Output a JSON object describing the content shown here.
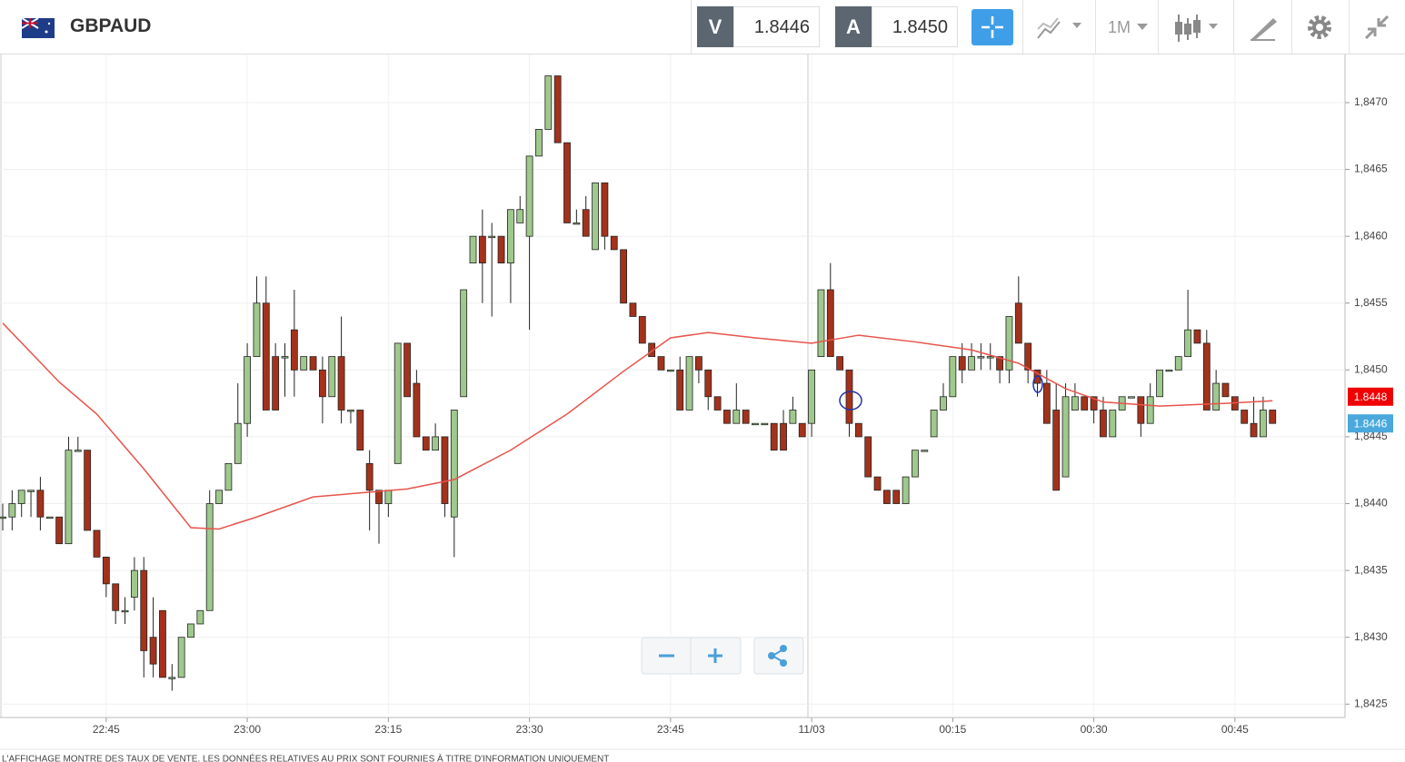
{
  "header": {
    "symbol": "GBPAUD",
    "sell_label": "V",
    "sell_price": "1.8446",
    "buy_label": "A",
    "buy_price": "1.8450",
    "timeframe": "1M"
  },
  "disclaimer": "L'AFFICHAGE MONTRE DES TAUX DE VENTE. LES DONNÉES RELATIVES AU PRIX SONT FOURNIES À TITRE D'INFORMATION UNIQUEMENT",
  "chart_data": {
    "type": "candlestick",
    "x": [
      "22:34",
      "22:35",
      "22:36",
      "22:37",
      "22:38",
      "22:39",
      "22:40",
      "22:41",
      "22:42",
      "22:43",
      "22:44",
      "22:45",
      "22:46",
      "22:47",
      "22:48",
      "22:49",
      "22:50",
      "22:51",
      "22:52",
      "22:53",
      "22:54",
      "22:55",
      "22:56",
      "22:57",
      "22:58",
      "22:59",
      "23:00",
      "23:01",
      "23:02",
      "23:03",
      "23:04",
      "23:05",
      "23:06",
      "23:07",
      "23:08",
      "23:09",
      "23:10",
      "23:11",
      "23:12",
      "23:13",
      "23:14",
      "23:15",
      "23:16",
      "23:17",
      "23:18",
      "23:19",
      "23:20",
      "23:21",
      "23:22",
      "23:23",
      "23:24",
      "23:25",
      "23:26",
      "23:27",
      "23:28",
      "23:29",
      "23:30",
      "23:31",
      "23:32",
      "23:33",
      "23:34",
      "23:35",
      "23:36",
      "23:37",
      "23:38",
      "23:39",
      "23:40",
      "23:41",
      "23:42",
      "23:43",
      "23:44",
      "23:45",
      "23:46",
      "23:47",
      "23:48",
      "23:49",
      "23:50",
      "23:51",
      "23:52",
      "23:53",
      "23:54",
      "23:55",
      "23:56",
      "23:57",
      "23:58",
      "23:59",
      "00:00",
      "00:01",
      "00:02",
      "00:03",
      "00:04",
      "00:05",
      "00:06",
      "00:07",
      "00:08",
      "00:09",
      "00:10",
      "00:11",
      "00:12",
      "00:13",
      "00:14",
      "00:15",
      "00:16",
      "00:17",
      "00:18",
      "00:19",
      "00:20",
      "00:21",
      "00:22",
      "00:23",
      "00:24",
      "00:25",
      "00:26",
      "00:27",
      "00:28",
      "00:29",
      "00:30",
      "00:31",
      "00:32",
      "00:33",
      "00:34",
      "00:35",
      "00:36",
      "00:37",
      "00:38",
      "00:39",
      "00:40",
      "00:41",
      "00:42",
      "00:43",
      "00:44",
      "00:45",
      "00:46",
      "00:47",
      "00:48",
      "00:49"
    ],
    "open": [
      1.8439,
      1.8439,
      1.844,
      1.8441,
      1.8441,
      1.8439,
      1.8439,
      1.8437,
      1.8444,
      1.8444,
      1.8438,
      1.8436,
      1.8434,
      1.8432,
      1.8433,
      1.8435,
      1.843,
      1.8432,
      1.8427,
      1.8427,
      1.843,
      1.8431,
      1.8432,
      1.844,
      1.8441,
      1.8443,
      1.8446,
      1.8451,
      1.8455,
      1.8451,
      1.8451,
      1.8453,
      1.845,
      1.8451,
      1.845,
      1.8448,
      1.8451,
      1.8447,
      1.8447,
      1.8443,
      1.8441,
      1.844,
      1.8443,
      1.8452,
      1.8449,
      1.8445,
      1.8444,
      1.8445,
      1.8439,
      1.8448,
      1.8458,
      1.846,
      1.846,
      1.846,
      1.8458,
      1.8461,
      1.846,
      1.8466,
      1.8468,
      1.8472,
      1.8467,
      1.8461,
      1.8462,
      1.8459,
      1.8464,
      1.846,
      1.8459,
      1.8455,
      1.8454,
      1.8452,
      1.8451,
      1.845,
      1.845,
      1.8447,
      1.8451,
      1.845,
      1.8448,
      1.8447,
      1.8446,
      1.8447,
      1.8446,
      1.8446,
      1.8446,
      1.8446,
      1.8446,
      1.8446,
      1.8446,
      1.8451,
      1.8456,
      1.8451,
      1.845,
      1.8446,
      1.8445,
      1.8442,
      1.8441,
      1.8441,
      1.844,
      1.8442,
      1.8444,
      1.8445,
      1.8447,
      1.8448,
      1.8451,
      1.845,
      1.8451,
      1.8451,
      1.8451,
      1.845,
      1.8455,
      1.8452,
      1.845,
      1.8449,
      1.8447,
      1.8442,
      1.8447,
      1.8448,
      1.8448,
      1.8447,
      1.8445,
      1.8447,
      1.8448,
      1.8448,
      1.8446,
      1.8448,
      1.845,
      1.845,
      1.8451,
      1.8453,
      1.8452,
      1.8447,
      1.8449,
      1.8448,
      1.8447,
      1.8446,
      1.8445,
      1.8447
    ],
    "high": [
      1.844,
      1.8441,
      1.8441,
      1.8441,
      1.8442,
      1.8439,
      1.8439,
      1.8445,
      1.8445,
      1.8444,
      1.8438,
      1.8436,
      1.8434,
      1.8433,
      1.8436,
      1.8436,
      1.8433,
      1.8432,
      1.8428,
      1.843,
      1.8431,
      1.8432,
      1.8441,
      1.8441,
      1.8443,
      1.8449,
      1.8452,
      1.8457,
      1.8457,
      1.8452,
      1.8452,
      1.8456,
      1.8451,
      1.8451,
      1.8451,
      1.8451,
      1.8454,
      1.8447,
      1.8447,
      1.8444,
      1.8441,
      1.8441,
      1.8452,
      1.8452,
      1.845,
      1.8445,
      1.8446,
      1.8445,
      1.8447,
      1.8456,
      1.846,
      1.8462,
      1.8461,
      1.846,
      1.8462,
      1.8463,
      1.8466,
      1.8468,
      1.8472,
      1.8472,
      1.8467,
      1.8462,
      1.8463,
      1.8464,
      1.8464,
      1.846,
      1.8459,
      1.8455,
      1.8454,
      1.8452,
      1.8451,
      1.845,
      1.8451,
      1.8451,
      1.8451,
      1.845,
      1.8448,
      1.8447,
      1.8449,
      1.8447,
      1.8446,
      1.8446,
      1.8446,
      1.8447,
      1.8448,
      1.8446,
      1.845,
      1.8456,
      1.8458,
      1.8451,
      1.845,
      1.8446,
      1.8445,
      1.8442,
      1.8441,
      1.8441,
      1.8442,
      1.8444,
      1.8444,
      1.8447,
      1.8449,
      1.8451,
      1.8452,
      1.8452,
      1.8452,
      1.8452,
      1.8451,
      1.8454,
      1.8457,
      1.8452,
      1.845,
      1.845,
      1.8449,
      1.8449,
      1.8449,
      1.8448,
      1.8448,
      1.8448,
      1.8447,
      1.8448,
      1.8448,
      1.8448,
      1.8449,
      1.845,
      1.845,
      1.8451,
      1.8456,
      1.8453,
      1.8453,
      1.845,
      1.8449,
      1.8448,
      1.8447,
      1.8448,
      1.8448,
      1.8447
    ],
    "low": [
      1.8438,
      1.8438,
      1.8439,
      1.8439,
      1.8438,
      1.8439,
      1.8437,
      1.8437,
      1.8444,
      1.8438,
      1.8436,
      1.8433,
      1.8431,
      1.8431,
      1.8432,
      1.8427,
      1.8427,
      1.8427,
      1.8426,
      1.8427,
      1.843,
      1.8431,
      1.8432,
      1.844,
      1.8441,
      1.8443,
      1.8445,
      1.8451,
      1.8447,
      1.8447,
      1.8448,
      1.8448,
      1.845,
      1.845,
      1.8446,
      1.8448,
      1.8446,
      1.8446,
      1.8444,
      1.8438,
      1.8437,
      1.8439,
      1.8443,
      1.8448,
      1.8445,
      1.8444,
      1.8444,
      1.8439,
      1.8436,
      1.8448,
      1.8458,
      1.8455,
      1.8454,
      1.8458,
      1.8455,
      1.8461,
      1.8453,
      1.8466,
      1.8468,
      1.8467,
      1.8461,
      1.8461,
      1.846,
      1.8459,
      1.8459,
      1.8459,
      1.8455,
      1.8454,
      1.8452,
      1.8451,
      1.845,
      1.845,
      1.8447,
      1.8447,
      1.8449,
      1.8447,
      1.8447,
      1.8446,
      1.8446,
      1.8446,
      1.8446,
      1.8446,
      1.8444,
      1.8444,
      1.8446,
      1.8445,
      1.8445,
      1.8451,
      1.8451,
      1.845,
      1.8445,
      1.8445,
      1.8442,
      1.8441,
      1.844,
      1.844,
      1.844,
      1.8442,
      1.8444,
      1.8445,
      1.8447,
      1.8448,
      1.8449,
      1.845,
      1.845,
      1.845,
      1.8449,
      1.8449,
      1.8452,
      1.8449,
      1.8448,
      1.8446,
      1.8441,
      1.8442,
      1.8447,
      1.8447,
      1.8446,
      1.8445,
      1.8445,
      1.8447,
      1.8448,
      1.8445,
      1.8446,
      1.8448,
      1.845,
      1.845,
      1.8451,
      1.8452,
      1.8447,
      1.8447,
      1.8448,
      1.8447,
      1.8446,
      1.8445,
      1.8445,
      1.8446
    ],
    "close": [
      1.8439,
      1.844,
      1.8441,
      1.8441,
      1.8439,
      1.8439,
      1.8437,
      1.8444,
      1.8444,
      1.8438,
      1.8436,
      1.8434,
      1.8432,
      1.8432,
      1.8435,
      1.8429,
      1.8428,
      1.8427,
      1.8427,
      1.843,
      1.8431,
      1.8432,
      1.844,
      1.8441,
      1.8443,
      1.8446,
      1.8451,
      1.8455,
      1.8447,
      1.8447,
      1.8451,
      1.845,
      1.8451,
      1.845,
      1.8448,
      1.8451,
      1.8447,
      1.8447,
      1.8444,
      1.8441,
      1.844,
      1.8441,
      1.8452,
      1.8448,
      1.8445,
      1.8444,
      1.8445,
      1.844,
      1.8447,
      1.8456,
      1.846,
      1.8458,
      1.846,
      1.8458,
      1.8462,
      1.8462,
      1.8466,
      1.8468,
      1.8472,
      1.8467,
      1.8461,
      1.8461,
      1.846,
      1.8464,
      1.846,
      1.8459,
      1.8455,
      1.8454,
      1.8452,
      1.8451,
      1.845,
      1.845,
      1.8447,
      1.8451,
      1.845,
      1.8448,
      1.8447,
      1.8446,
      1.8447,
      1.8446,
      1.8446,
      1.8446,
      1.8444,
      1.8444,
      1.8447,
      1.8445,
      1.845,
      1.8456,
      1.8451,
      1.845,
      1.8446,
      1.8445,
      1.8442,
      1.8441,
      1.844,
      1.844,
      1.8442,
      1.8444,
      1.8444,
      1.8447,
      1.8448,
      1.8451,
      1.845,
      1.8451,
      1.8451,
      1.8451,
      1.845,
      1.8454,
      1.8452,
      1.845,
      1.8449,
      1.8446,
      1.8441,
      1.8448,
      1.8448,
      1.8447,
      1.8447,
      1.8445,
      1.8447,
      1.8448,
      1.8448,
      1.8446,
      1.8448,
      1.845,
      1.845,
      1.8451,
      1.8453,
      1.8452,
      1.8447,
      1.8449,
      1.8448,
      1.8447,
      1.8446,
      1.8445,
      1.8447,
      1.8446
    ],
    "up_color": "#9fc98c",
    "down_color": "#a4321b",
    "lines": [
      {
        "color": "#e8534a",
        "x": [
          "22:34",
          "22:40",
          "22:44",
          "22:49",
          "22:54",
          "22:57",
          "23:01",
          "23:07",
          "23:12",
          "23:17",
          "23:22",
          "23:28",
          "23:34",
          "23:40",
          "23:45",
          "23:49",
          "23:54",
          "00:00",
          "00:05",
          "00:11",
          "00:17",
          "00:22",
          "00:27",
          "00:31",
          "00:37",
          "00:44",
          "00:49"
        ],
        "values": [
          1.84535,
          1.84491,
          1.84467,
          1.84426,
          1.84382,
          1.84381,
          1.8439,
          1.84405,
          1.84408,
          1.84411,
          1.84418,
          1.8444,
          1.84467,
          1.84499,
          1.84524,
          1.84528,
          1.84524,
          1.8452,
          1.84526,
          1.84521,
          1.84515,
          1.84505,
          1.84486,
          1.84476,
          1.84473,
          1.84475,
          1.84477
        ]
      }
    ],
    "price_tags": [
      {
        "value": 1.8448,
        "color": "#f00000"
      },
      {
        "value": 1.8446,
        "color": "#4aa8dc"
      }
    ],
    "ylim": [
      1.8424,
      1.84736
    ],
    "yticks": [
      {
        "value": 1.8425,
        "label": "1,8425"
      },
      {
        "value": 1.843,
        "label": "1,8430"
      },
      {
        "value": 1.8435,
        "label": "1,8435"
      },
      {
        "value": 1.844,
        "label": "1,8440"
      },
      {
        "value": 1.8445,
        "label": "1,8445"
      },
      {
        "value": 1.845,
        "label": "1,8450"
      },
      {
        "value": 1.8455,
        "label": "1,8455"
      },
      {
        "value": 1.846,
        "label": "1,8460"
      },
      {
        "value": 1.8465,
        "label": "1,8465"
      },
      {
        "value": 1.847,
        "label": "1,8470"
      }
    ],
    "xticks": [
      "22:45",
      "23:00",
      "23:15",
      "23:30",
      "23:45",
      {
        "value": "00:00",
        "label": "11/03"
      },
      "00:15",
      "00:30",
      "00:45"
    ],
    "grid": true
  }
}
